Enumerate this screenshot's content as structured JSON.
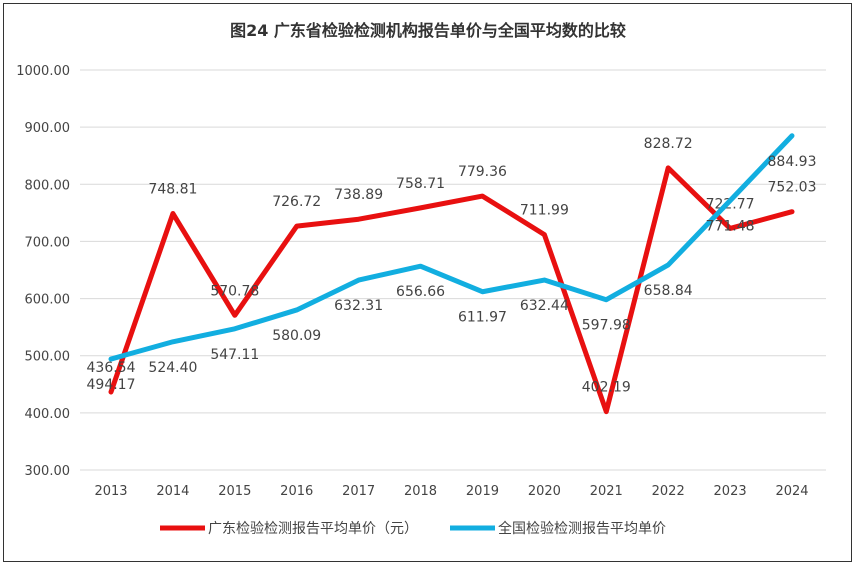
{
  "chart_data": {
    "type": "line",
    "title": "图24  广东省检验检测机构报告单价与全国平均数的比较",
    "categories": [
      "2013",
      "2014",
      "2015",
      "2016",
      "2017",
      "2018",
      "2019",
      "2020",
      "2021",
      "2022",
      "2023",
      "2024"
    ],
    "series": [
      {
        "name": "广东检验检测报告平均单价（元）",
        "color": "#e81010",
        "values": [
          436.54,
          748.81,
          570.78,
          726.72,
          738.89,
          758.71,
          779.36,
          711.99,
          402.19,
          828.72,
          722.77,
          752.03
        ],
        "labels": [
          "436.54",
          "748.81",
          "570.78",
          "726.72",
          "738.89",
          "758.71",
          "779.36",
          "711.99",
          "402.19",
          "828.72",
          "722.77",
          "752.03"
        ]
      },
      {
        "name": "全国检验检测报告平均单价",
        "color": "#12aee0",
        "values": [
          494.17,
          524.4,
          547.11,
          580.09,
          632.31,
          656.66,
          611.97,
          632.44,
          597.98,
          658.84,
          771.48,
          884.93
        ],
        "labels": [
          "494.17",
          "524.40",
          "547.11",
          "580.09",
          "632.31",
          "656.66",
          "611.97",
          "632.44",
          "597.98",
          "658.84",
          "771.48",
          "884.93"
        ]
      }
    ],
    "yticks": [
      "300.00",
      "400.00",
      "500.00",
      "600.00",
      "700.00",
      "800.00",
      "900.00",
      "1000.00"
    ],
    "ylim": [
      300,
      1000
    ],
    "grid": true,
    "legend": "bottom"
  }
}
